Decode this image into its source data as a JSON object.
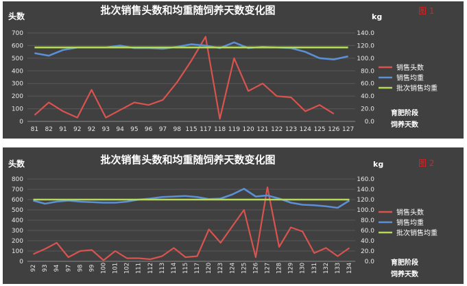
{
  "chart_data": [
    {
      "type": "line",
      "title": "批次销售头数和均重随饲养天数变化图",
      "badge": "图 1",
      "ylabel_left": "头数",
      "ylabel_right": "kg",
      "xlabel_lines": [
        "育肥阶段",
        "饲养天数"
      ],
      "ylim_left": [
        0,
        700
      ],
      "ylim_right": [
        0,
        140
      ],
      "yticks_left": [
        "0",
        "100",
        "200",
        "300",
        "400",
        "500",
        "600",
        "700"
      ],
      "yticks_right": [
        "0.0",
        "20.0",
        "40.0",
        "60.0",
        "80.0",
        "100.0",
        "120.0",
        "140.0"
      ],
      "categories": [
        "81",
        "82",
        "91",
        "92",
        "92",
        "93",
        "94",
        "95",
        "96",
        "97",
        "98",
        "115",
        "117",
        "118",
        "119",
        "120",
        "121",
        "122",
        "123",
        "124",
        "125",
        "126",
        "127"
      ],
      "legend_position": "right",
      "grid": true,
      "series": [
        {
          "name": "销售头数",
          "axis": "left",
          "color": "#d9534f",
          "values": [
            50,
            150,
            80,
            30,
            250,
            30,
            90,
            150,
            130,
            170,
            310,
            480,
            670,
            20,
            500,
            240,
            300,
            200,
            190,
            80,
            130,
            60,
            null
          ]
        },
        {
          "name": "销售均重",
          "axis": "right",
          "color": "#5b8fd6",
          "values": [
            108,
            104,
            113,
            117,
            117,
            117,
            120,
            116,
            116,
            115,
            118,
            122,
            120,
            116,
            125,
            116,
            118,
            117,
            116,
            110,
            100,
            98,
            103
          ]
        },
        {
          "name": "批次销售均重",
          "axis": "right",
          "color": "#b5d95a",
          "values": [
            117,
            117,
            117,
            117,
            117,
            117,
            117,
            117,
            117,
            117,
            117,
            117,
            117,
            117,
            117,
            117,
            117,
            117,
            117,
            117,
            117,
            117,
            117
          ]
        }
      ]
    },
    {
      "type": "line",
      "title": "批次销售头数和均重随饲养天数变化图",
      "badge": "图 2",
      "ylabel_left": "头数",
      "ylabel_right": "kg",
      "xlabel_lines": [
        "育肥阶段",
        "饲养天数"
      ],
      "ylim_left": [
        0,
        800
      ],
      "ylim_right": [
        0,
        160
      ],
      "yticks_left": [
        "0",
        "100",
        "200",
        "300",
        "400",
        "500",
        "600",
        "700",
        "800"
      ],
      "yticks_right": [
        "0.0",
        "20.0",
        "40.0",
        "60.0",
        "80.0",
        "100.0",
        "120.0",
        "140.0",
        "160.0"
      ],
      "categories": [
        "92",
        "93",
        "94",
        "97",
        "98",
        "99",
        "100",
        "101",
        "102",
        "111",
        "112",
        "113",
        "114",
        "115",
        "117",
        "120",
        "123",
        "124",
        "125",
        "126",
        "127",
        "128",
        "129",
        "130",
        "131",
        "132",
        "133",
        "134"
      ],
      "legend_position": "right",
      "grid": true,
      "series": [
        {
          "name": "销售头数",
          "axis": "left",
          "color": "#d9534f",
          "values": [
            70,
            120,
            180,
            40,
            100,
            110,
            10,
            100,
            30,
            30,
            20,
            50,
            130,
            40,
            50,
            310,
            180,
            340,
            500,
            40,
            720,
            140,
            330,
            290,
            80,
            130,
            50,
            130
          ]
        },
        {
          "name": "销售均重",
          "axis": "right",
          "color": "#5b8fd6",
          "values": [
            118,
            112,
            116,
            118,
            116,
            115,
            114,
            114,
            116,
            120,
            122,
            125,
            126,
            127,
            125,
            121,
            122,
            130,
            141,
            126,
            128,
            122,
            114,
            110,
            109,
            107,
            104,
            118
          ]
        },
        {
          "name": "批次销售均重",
          "axis": "right",
          "color": "#b5d95a",
          "values": [
            120,
            120,
            120,
            120,
            120,
            120,
            120,
            120,
            120,
            120,
            120,
            120,
            120,
            120,
            120,
            120,
            120,
            120,
            120,
            120,
            120,
            120,
            120,
            120,
            120,
            120,
            120,
            120
          ]
        }
      ]
    }
  ]
}
